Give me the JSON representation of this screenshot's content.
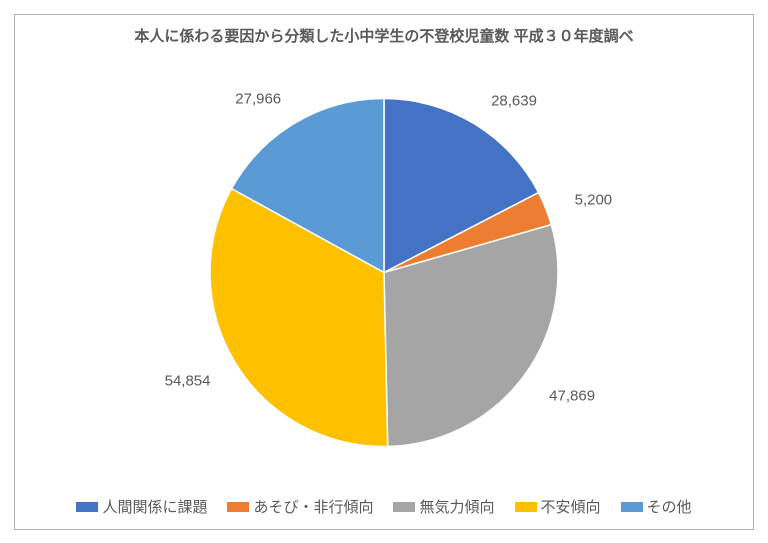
{
  "chart": {
    "type": "pie",
    "title": "本人に係わる要因から分類した小中学生の不登校児童数 平成３０年度調べ",
    "title_fontsize": 15,
    "title_color": "#595959",
    "background_color": "#ffffff",
    "border_color": "#b0b0b0",
    "label_fontsize": 15,
    "label_color": "#595959",
    "legend_fontsize": 15,
    "legend_color": "#595959",
    "pie_radius": 174,
    "start_angle_deg": -90,
    "slices": [
      {
        "label": "人間関係に課題",
        "value": 28639,
        "value_text": "28,639",
        "color": "#4472c4"
      },
      {
        "label": "あそび・非行傾向",
        "value": 5200,
        "value_text": "5,200",
        "color": "#ed7d31"
      },
      {
        "label": "無気力傾向",
        "value": 47869,
        "value_text": "47,869",
        "color": "#a5a5a5"
      },
      {
        "label": "不安傾向",
        "value": 54854,
        "value_text": "54,854",
        "color": "#ffc000"
      },
      {
        "label": "その他",
        "value": 27966,
        "value_text": "27,966",
        "color": "#5b9bd5"
      }
    ]
  }
}
